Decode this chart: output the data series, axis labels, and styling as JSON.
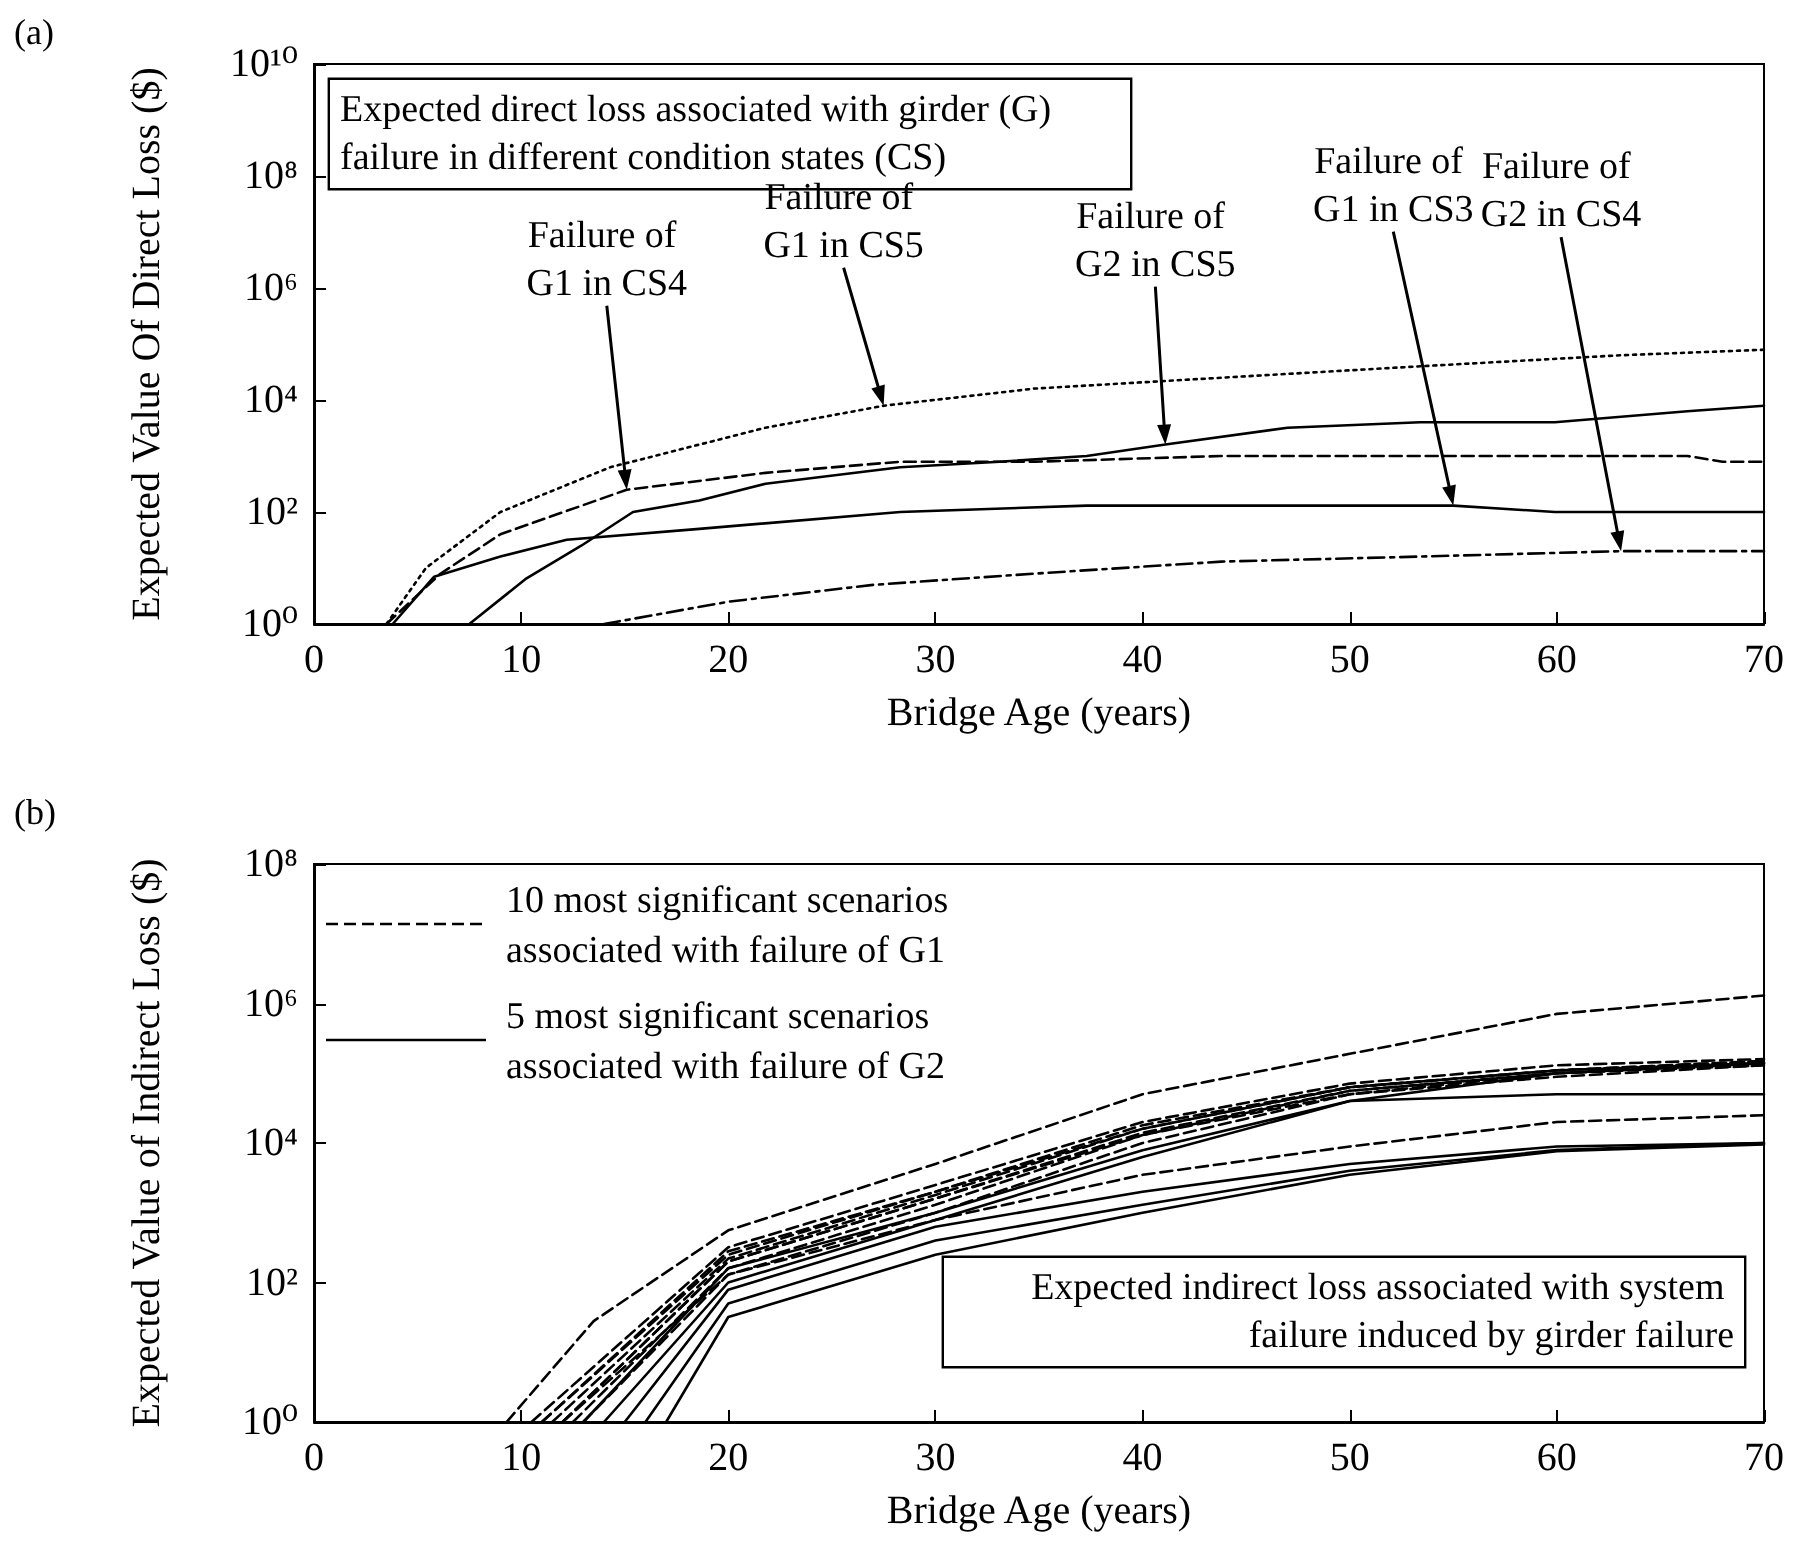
{
  "chart_data": [
    {
      "type": "line",
      "title": "(a)",
      "xlabel": "Bridge Age (years)",
      "ylabel": "Expected Value Of Direct Loss ($)",
      "log": "y",
      "marker": "none",
      "xlim": [
        0,
        70
      ],
      "xticks": [
        0,
        10,
        20,
        30,
        40,
        50,
        60,
        70
      ],
      "ylim": [
        1,
        10000000000
      ],
      "yticks": [
        {
          "value": 1,
          "label": "10⁰"
        },
        {
          "value": 100,
          "label": "10²"
        },
        {
          "value": 10000,
          "label": "10⁴"
        },
        {
          "value": 1000000,
          "label": "10⁶"
        },
        {
          "value": 100000000,
          "label": "10⁸"
        },
        {
          "value": 10000000000,
          "label": "10¹⁰"
        }
      ],
      "series": [
        {
          "color": "#000000",
          "line_style": "dotted",
          "x": [
            3.5,
            5.4,
            9,
            14.3,
            21.8,
            27.5,
            34.8,
            43.8,
            53.4,
            63.1,
            70
          ],
          "values": [
            1,
            10,
            100,
            630,
            3200,
            7900,
            16000,
            25000,
            40000,
            63000,
            79000
          ]
        },
        {
          "color": "#000000",
          "line_style": "dashed",
          "x": [
            3.5,
            6.1,
            9,
            15.1,
            21.8,
            28.3,
            34.8,
            43.8,
            66.3,
            68,
            70
          ],
          "values": [
            1,
            7.9,
            40,
            250,
            500,
            790,
            790,
            1000,
            1000,
            790,
            790
          ]
        },
        {
          "color": "#000000",
          "line_style": "solid",
          "x": [
            3.8,
            5.8,
            9,
            12.2,
            18.6,
            28.3,
            37.3,
            55,
            59.9,
            70
          ],
          "values": [
            1,
            7,
            16,
            32,
            50,
            100,
            130,
            130,
            100,
            100
          ]
        },
        {
          "color": "#000000",
          "line_style": "solid",
          "x": [
            7.5,
            10.2,
            12.9,
            15.4,
            18.6,
            21.8,
            28.3,
            33.1,
            37.3,
            41.1,
            47,
            53.4,
            59.9,
            66.3,
            70
          ],
          "values": [
            1,
            6.3,
            25,
            100,
            160,
            320,
            630,
            790,
            1000,
            1600,
            3200,
            4000,
            4000,
            6300,
            7900
          ]
        },
        {
          "color": "#000000",
          "line_style": "dashdot",
          "x": [
            14,
            20,
            27,
            34.7,
            43.8,
            53.4,
            63.1,
            70
          ],
          "values": [
            1,
            2.5,
            5,
            7.9,
            13,
            16,
            20,
            20
          ]
        }
      ],
      "annotations": [
        "Expected direct loss associated with girder (G) failure in different condition states (CS)",
        "Failure of G1 in CS4",
        "Failure of G1 in CS5",
        "Failure of G2 in CS5",
        "Failure of G1 in CS3",
        "Failure of G2 in CS4"
      ]
    },
    {
      "type": "line",
      "title": "(b)",
      "xlabel": "Bridge Age (years)",
      "ylabel": "Expected Value of Indirect Loss ($)",
      "log": "y",
      "marker": "none",
      "legend": "top left",
      "xlim": [
        0,
        70
      ],
      "xticks": [
        0,
        10,
        20,
        30,
        40,
        50,
        60,
        70
      ],
      "ylim": [
        1,
        100000000
      ],
      "yticks": [
        {
          "value": 1,
          "label": "10⁰"
        },
        {
          "value": 100,
          "label": "10²"
        },
        {
          "value": 10000,
          "label": "10⁴"
        },
        {
          "value": 1000000,
          "label": "10⁶"
        },
        {
          "value": 100000000,
          "label": "10⁸"
        }
      ],
      "series": [
        {
          "name": "10 most significant scenarios associated with failure of G1",
          "color": "#000000",
          "line_style": "dashed",
          "x": [
            9.3,
            13.5,
            20,
            30,
            40,
            50,
            60,
            70
          ],
          "values": [
            1,
            28,
            560,
            5000,
            50000,
            190000,
            710000,
            1300000
          ]
        },
        {
          "color": "#000000",
          "line_style": "dashed",
          "x": [
            10.5,
            20,
            30,
            40,
            50,
            60,
            70
          ],
          "values": [
            1,
            320,
            2500,
            20000,
            71000,
            130000,
            160000
          ]
        },
        {
          "color": "#000000",
          "line_style": "dashed",
          "x": [
            11,
            20,
            30,
            40,
            50,
            60,
            70
          ],
          "values": [
            1,
            250,
            2000,
            16000,
            63000,
            110000,
            150000
          ]
        },
        {
          "color": "#000000",
          "line_style": "dashed",
          "x": [
            11.5,
            20,
            30,
            40,
            50,
            60,
            70
          ],
          "values": [
            1,
            220,
            1800,
            16000,
            63000,
            110000,
            140000
          ]
        },
        {
          "color": "#000000",
          "line_style": "dashed",
          "x": [
            12,
            20,
            30,
            40,
            50,
            60,
            70
          ],
          "values": [
            1,
            200,
            1600,
            14000,
            56000,
            100000,
            140000
          ]
        },
        {
          "color": "#000000",
          "line_style": "dashed",
          "x": [
            12.5,
            20,
            30,
            40,
            50,
            60,
            70
          ],
          "values": [
            1,
            160,
            1300,
            13000,
            56000,
            100000,
            140000
          ]
        },
        {
          "color": "#000000",
          "line_style": "dashed",
          "x": [
            13,
            20,
            30,
            40,
            50,
            60,
            70
          ],
          "values": [
            1,
            130,
            1000,
            10000,
            50000,
            100000,
            130000
          ]
        },
        {
          "color": "#000000",
          "line_style": "dashed",
          "x": [
            12,
            20,
            30,
            40,
            50,
            60,
            70
          ],
          "values": [
            1,
            200,
            1600,
            13000,
            50000,
            89000,
            130000
          ]
        },
        {
          "color": "#000000",
          "line_style": "dashed",
          "x": [
            11,
            20,
            30,
            40,
            50,
            60,
            70
          ],
          "values": [
            1,
            280,
            2000,
            18000,
            63000,
            110000,
            150000
          ]
        },
        {
          "color": "#000000",
          "line_style": "dashed",
          "x": [
            12,
            20,
            30,
            40,
            50,
            60,
            70
          ],
          "values": [
            1,
            130,
            790,
            3500,
            8900,
            20000,
            25000
          ]
        },
        {
          "name": "5 most significant scenarios associated with failure of G2",
          "color": "#000000",
          "line_style": "solid",
          "x": [
            13,
            20,
            30,
            40,
            50,
            60,
            70
          ],
          "values": [
            1,
            160,
            1000,
            7900,
            40000,
            50000,
            50000
          ]
        },
        {
          "color": "#000000",
          "line_style": "solid",
          "x": [
            14,
            20,
            30,
            40,
            50,
            60,
            70
          ],
          "values": [
            1,
            100,
            790,
            6300,
            40000,
            100000,
            140000
          ]
        },
        {
          "color": "#000000",
          "line_style": "solid",
          "x": [
            15,
            20,
            30,
            40,
            50,
            60,
            70
          ],
          "values": [
            1,
            79,
            630,
            2000,
            5000,
            8900,
            10000
          ]
        },
        {
          "color": "#000000",
          "line_style": "solid",
          "x": [
            16,
            20,
            30,
            40,
            50,
            60,
            70
          ],
          "values": [
            1,
            50,
            400,
            1300,
            4000,
            7900,
            10000
          ]
        },
        {
          "color": "#000000",
          "line_style": "solid",
          "x": [
            17,
            20,
            30,
            40,
            50,
            60,
            70
          ],
          "values": [
            1,
            32,
            250,
            1000,
            3500,
            7600,
            9500
          ]
        }
      ],
      "annotations": [
        "Expected indirect loss associated with system failure induced by girder failure"
      ]
    }
  ]
}
